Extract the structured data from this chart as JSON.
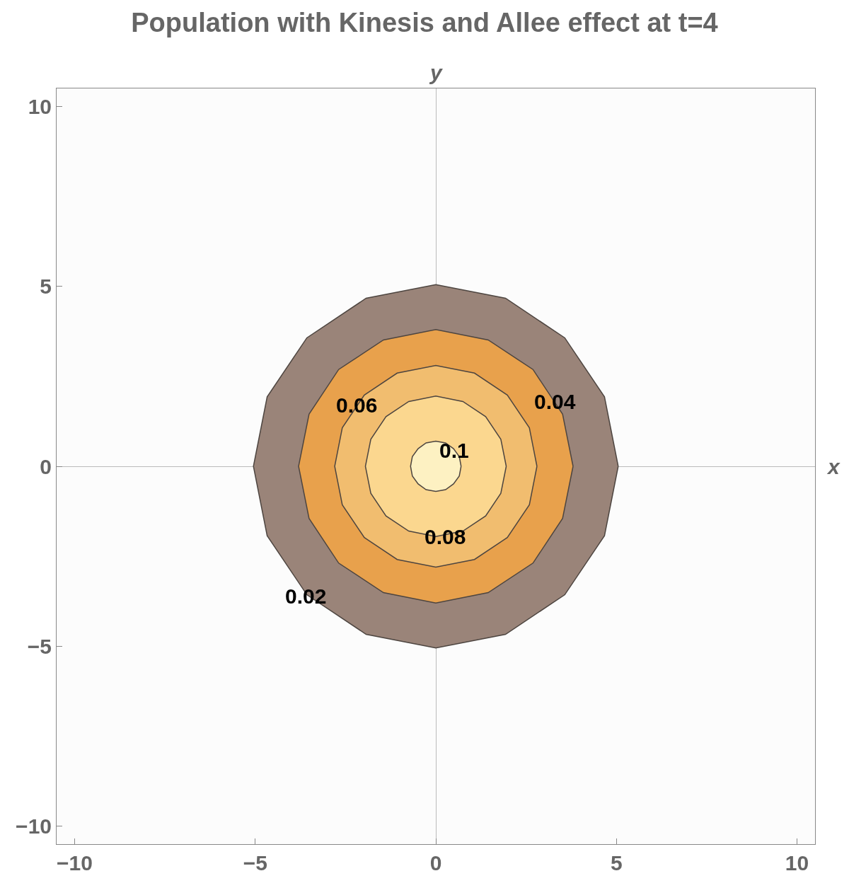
{
  "chart_data": {
    "type": "area",
    "title": "Population with Kinesis and Allee effect at t=4",
    "xlabel": "x",
    "ylabel": "y",
    "xlim": [
      -10.5,
      10.5
    ],
    "ylim": [
      -10.5,
      10.5
    ],
    "xticks": [
      {
        "value": -10,
        "label": "−10"
      },
      {
        "value": -5,
        "label": "−5"
      },
      0,
      5,
      10
    ],
    "yticks": [
      {
        "value": -10,
        "label": "−10"
      },
      {
        "value": -5,
        "label": "−5"
      },
      0,
      5,
      10
    ],
    "series": [
      {
        "color": "#9a8479",
        "x": [
          5.05,
          4.67,
          3.57,
          1.93,
          0,
          -1.93,
          -3.57,
          -4.67,
          -5.05,
          -4.67,
          -3.57,
          -1.93,
          0,
          1.93,
          3.57,
          4.67,
          5.05
        ],
        "values": [
          0,
          1.93,
          3.57,
          4.67,
          5.05,
          4.67,
          3.57,
          1.93,
          0,
          -1.93,
          -3.57,
          -4.67,
          -5.05,
          -4.67,
          -3.57,
          -1.93,
          0
        ]
      },
      {
        "color": "#e8a14c",
        "x": [
          3.8,
          3.51,
          2.69,
          1.45,
          0,
          -1.45,
          -2.69,
          -3.51,
          -3.8,
          -3.51,
          -2.69,
          -1.45,
          0,
          1.45,
          2.69,
          3.51,
          3.8
        ],
        "values": [
          0,
          1.45,
          2.69,
          3.51,
          3.8,
          3.51,
          2.69,
          1.45,
          0,
          -1.45,
          -2.69,
          -3.51,
          -3.8,
          -3.51,
          -2.69,
          -1.45,
          0
        ]
      },
      {
        "color": "#f1bd6f",
        "x": [
          2.8,
          2.59,
          1.98,
          1.07,
          0,
          -1.07,
          -1.98,
          -2.59,
          -2.8,
          -2.59,
          -1.98,
          -1.07,
          0,
          1.07,
          1.98,
          2.59,
          2.8
        ],
        "values": [
          0,
          1.07,
          1.98,
          2.59,
          2.8,
          2.59,
          1.98,
          1.07,
          0,
          -1.07,
          -1.98,
          -2.59,
          -2.8,
          -2.59,
          -1.98,
          -1.07,
          0
        ]
      },
      {
        "color": "#fbd78f",
        "x": [
          1.95,
          1.8,
          1.38,
          0.75,
          0,
          -0.75,
          -1.38,
          -1.8,
          -1.95,
          -1.8,
          -1.38,
          -0.75,
          0,
          0.75,
          1.38,
          1.8,
          1.95
        ],
        "values": [
          0,
          0.75,
          1.38,
          1.8,
          1.95,
          1.8,
          1.38,
          0.75,
          0,
          -0.75,
          -1.38,
          -1.8,
          -1.95,
          -1.8,
          -1.38,
          -0.75,
          0
        ]
      },
      {
        "color": "#fdf1c2",
        "x": [
          0.7,
          0.65,
          0.49,
          0.27,
          0,
          -0.27,
          -0.49,
          -0.65,
          -0.7,
          -0.65,
          -0.49,
          -0.27,
          0,
          0.27,
          0.49,
          0.65,
          0.7
        ],
        "values": [
          0,
          0.27,
          0.49,
          0.65,
          0.7,
          0.65,
          0.49,
          0.27,
          0,
          -0.27,
          -0.49,
          -0.65,
          -0.7,
          -0.65,
          -0.49,
          -0.27,
          0
        ]
      }
    ],
    "annotations": [
      {
        "text": "0.06",
        "x": -2.2,
        "y": 1.7
      },
      {
        "text": "0.04",
        "x": 3.3,
        "y": 1.8
      },
      {
        "text": "0.1",
        "x": 0.5,
        "y": 0.45
      },
      {
        "text": "0.08",
        "x": 0.25,
        "y": -1.95
      },
      {
        "text": "0.02",
        "x": -3.6,
        "y": -3.6
      }
    ]
  }
}
